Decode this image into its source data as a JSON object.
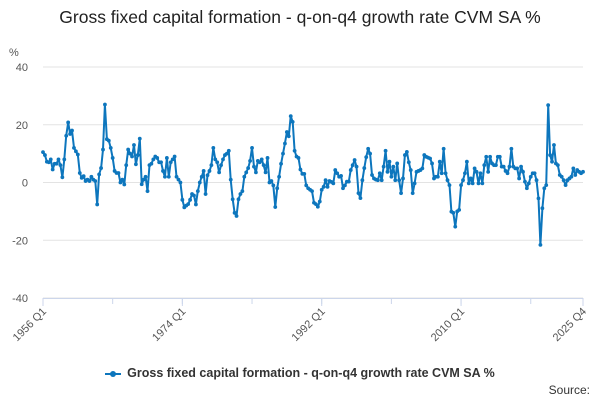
{
  "chart_data": {
    "type": "line",
    "title": "Gross fixed capital formation - q-on-q4 growth rate CVM SA %",
    "ylabel": "%",
    "xlabel": "",
    "x_start": "1956 Q1",
    "x_end": "2025 Q4",
    "frequency": "quarterly",
    "x_tick_labels": [
      "1956 Q1",
      "1974 Q1",
      "1992 Q1",
      "2010 Q1",
      "2025 Q4"
    ],
    "y_ticks": [
      40,
      20,
      0,
      -20,
      -40
    ],
    "ylim": [
      -40,
      40
    ],
    "grid": true,
    "legend_position": "bottom",
    "color": "#0d76bd",
    "series": [
      {
        "name": "Gross fixed capital formation - q-on-q4 growth rate CVM SA %",
        "values": [
          10.5,
          9.5,
          7.2,
          7,
          8,
          4.5,
          6.5,
          6.5,
          8,
          6,
          1.8,
          8,
          16.2,
          20.8,
          16.8,
          18,
          12,
          10.8,
          9.7,
          3.3,
          1.6,
          2.2,
          0.5,
          1,
          0.5,
          2,
          1,
          0.5,
          -7.6,
          2.8,
          5,
          11.4,
          27,
          15,
          14.5,
          12,
          8.5,
          4,
          3.3,
          3.3,
          0,
          1,
          -0.7,
          6,
          11.4,
          10,
          9,
          13,
          6.3,
          9.5,
          15.2,
          -0.6,
          1,
          2,
          -3,
          6,
          6.5,
          8,
          9,
          8.5,
          7,
          7,
          4,
          2,
          8.5,
          2,
          7,
          8,
          9,
          2,
          1,
          0,
          -6,
          -8.6,
          -8,
          -7.5,
          -6,
          -4,
          -4.5,
          -7.6,
          -3,
          0,
          2,
          4,
          -4,
          2.5,
          4,
          6,
          12,
          8,
          7,
          3.5,
          6,
          8,
          9.5,
          10,
          11,
          1,
          -5.8,
          -10.5,
          -11.6,
          -5.8,
          -4,
          -3,
          2,
          3.5,
          5,
          7.5,
          12,
          5.5,
          3.5,
          7.5,
          7,
          8,
          6,
          3.5,
          8.5,
          0,
          0.5,
          -1,
          -8.5,
          -2,
          2,
          6.5,
          10,
          13.5,
          17.5,
          16,
          23,
          21,
          11,
          9,
          8.5,
          4.5,
          3,
          3,
          -1,
          -2,
          -2.5,
          -3,
          -7,
          -7.5,
          -8.4,
          -6.6,
          -2.5,
          -1.5,
          0.8,
          -1.5,
          0.5,
          0.2,
          -0.3,
          4.3,
          3.2,
          2,
          2.3,
          -2,
          -1,
          0.3,
          0.3,
          4.3,
          6,
          7.8,
          5.5,
          -3.7,
          -5.4,
          0.8,
          5,
          8.8,
          11.7,
          10,
          2.6,
          1.4,
          1,
          0.8,
          3.2,
          0.8,
          5.5,
          11,
          3.7,
          7.2,
          2,
          5.5,
          0.8,
          6.6,
          0.8,
          -3.7,
          1.4,
          9.5,
          10.6,
          7,
          4.3,
          -3.7,
          -0.3,
          3.7,
          4,
          4.3,
          4.9,
          9.5,
          8.9,
          8.6,
          8.3,
          6.6,
          1.4,
          2,
          2,
          7.2,
          3.2,
          11.7,
          3.2,
          0.8,
          -0.9,
          -10.1,
          -10.5,
          -15.3,
          -10,
          -9.5,
          -0.9,
          0.8,
          3.2,
          7.2,
          -0.3,
          1.4,
          -0.3,
          4.9,
          3.7,
          -0.3,
          3.2,
          -0.3,
          6,
          8.9,
          3.7,
          8.9,
          6.6,
          6,
          6,
          8.9,
          8.9,
          5.5,
          5.5,
          4,
          3.2,
          5.5,
          11.7,
          5.5,
          4.9,
          4.9,
          1.4,
          5.5,
          3.7,
          0.3,
          -2,
          -0.3,
          2,
          3.2,
          3.2,
          0.8,
          -5.5,
          -21.6,
          -8.9,
          -2,
          -0.9,
          26.8,
          9.5,
          7.2,
          13,
          6.6,
          6,
          2.6,
          2,
          0.8,
          -0.9,
          0.8,
          1.4,
          2,
          4.9,
          2.6,
          4.3,
          3.7,
          3.2,
          3.7
        ]
      }
    ]
  },
  "footer": {
    "source_label": "Source:"
  }
}
